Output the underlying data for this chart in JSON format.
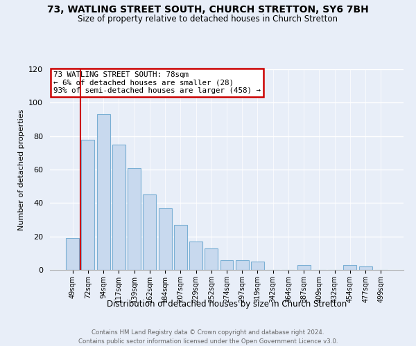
{
  "title": "73, WATLING STREET SOUTH, CHURCH STRETTON, SY6 7BH",
  "subtitle": "Size of property relative to detached houses in Church Stretton",
  "xlabel": "Distribution of detached houses by size in Church Stretton",
  "ylabel": "Number of detached properties",
  "bar_labels": [
    "49sqm",
    "72sqm",
    "94sqm",
    "117sqm",
    "139sqm",
    "162sqm",
    "184sqm",
    "207sqm",
    "229sqm",
    "252sqm",
    "274sqm",
    "297sqm",
    "319sqm",
    "342sqm",
    "364sqm",
    "387sqm",
    "409sqm",
    "432sqm",
    "454sqm",
    "477sqm",
    "499sqm"
  ],
  "bar_values": [
    19,
    78,
    93,
    75,
    61,
    45,
    37,
    27,
    17,
    13,
    6,
    6,
    5,
    0,
    0,
    3,
    0,
    0,
    3,
    2,
    0
  ],
  "bar_color": "#c8d9ee",
  "bar_edge_color": "#7aafd4",
  "vline_x": 1.5,
  "vline_color": "#cc0000",
  "ylim": [
    0,
    120
  ],
  "yticks": [
    0,
    20,
    40,
    60,
    80,
    100,
    120
  ],
  "annotation_title": "73 WATLING STREET SOUTH: 78sqm",
  "annotation_line1": "← 6% of detached houses are smaller (28)",
  "annotation_line2": "93% of semi-detached houses are larger (458) →",
  "annotation_box_color": "#ffffff",
  "annotation_box_edge": "#cc0000",
  "footer_line1": "Contains HM Land Registry data © Crown copyright and database right 2024.",
  "footer_line2": "Contains public sector information licensed under the Open Government Licence v3.0.",
  "background_color": "#e8eef8",
  "plot_bg_color": "#e8eef8",
  "grid_color": "#ffffff"
}
